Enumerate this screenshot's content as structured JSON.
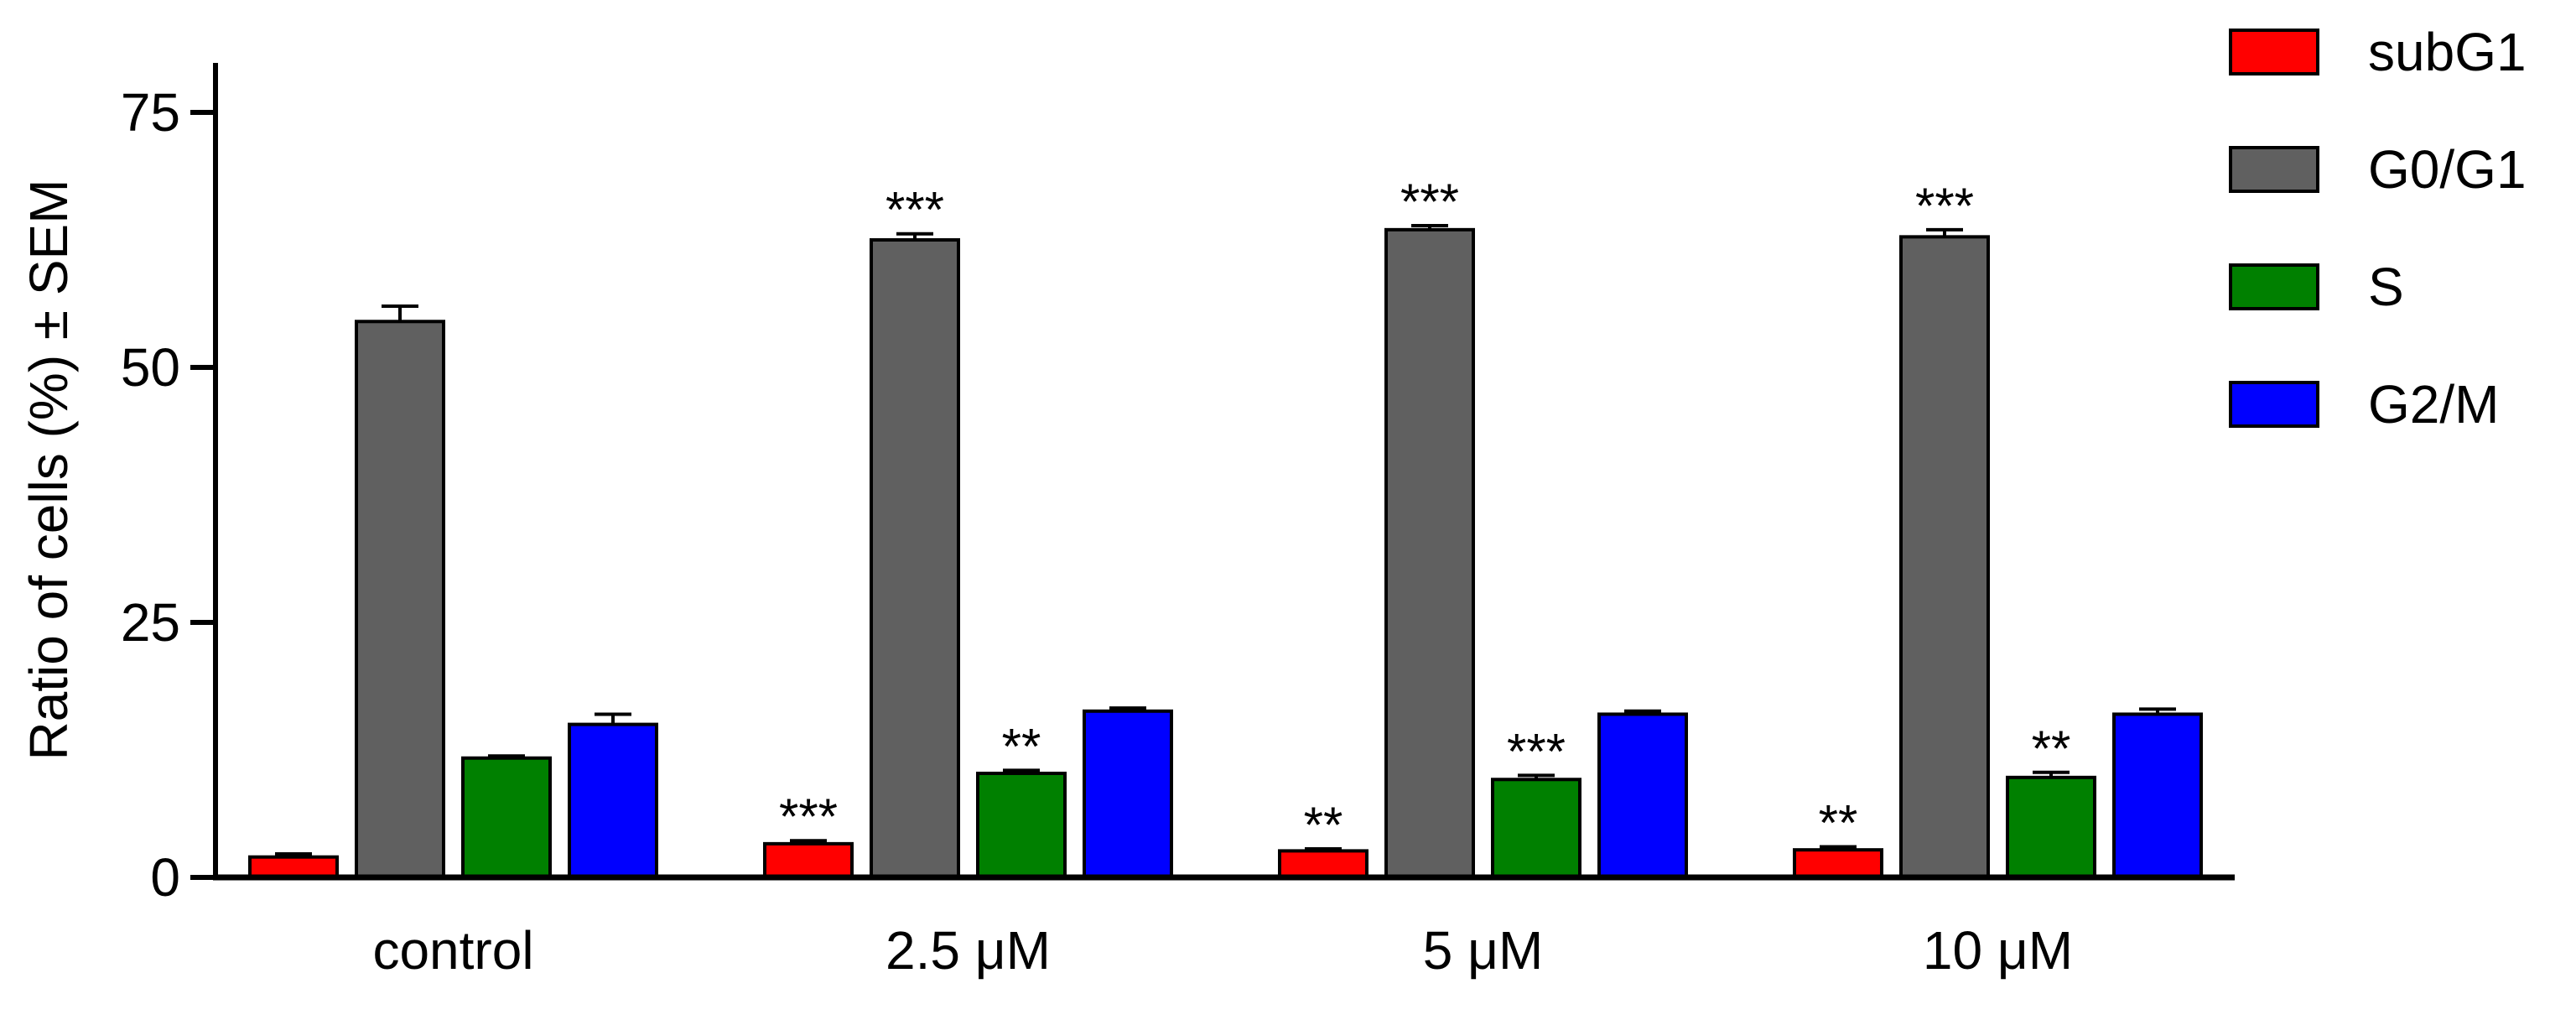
{
  "chart_data": {
    "type": "bar",
    "title": "",
    "xlabel": "",
    "ylabel": "Ratio of cells (%) ± SEM",
    "ylim": [
      0,
      80
    ],
    "yticks": [
      0,
      25,
      50,
      75
    ],
    "categories": [
      "control",
      "2.5 μM",
      "5 μM",
      "10 μM"
    ],
    "series": [
      {
        "name": "subG1",
        "color": "#ff0000",
        "values": [
          2.0,
          3.3,
          2.6,
          2.7
        ],
        "errors": [
          0.3,
          0.3,
          0.2,
          0.3
        ],
        "significance": [
          "",
          "***",
          "**",
          "**"
        ]
      },
      {
        "name": "G0/G1",
        "color": "#606060",
        "values": [
          54.5,
          62.5,
          63.5,
          62.8
        ],
        "errors": [
          1.5,
          0.6,
          0.4,
          0.7
        ],
        "significance": [
          "",
          "***",
          "***",
          "***"
        ]
      },
      {
        "name": "S",
        "color": "#008000",
        "values": [
          11.7,
          10.2,
          9.6,
          9.8
        ],
        "errors": [
          0.2,
          0.3,
          0.4,
          0.5
        ],
        "significance": [
          "",
          "**",
          "***",
          "**"
        ]
      },
      {
        "name": "G2/M",
        "color": "#0000ff",
        "values": [
          15.0,
          16.3,
          16.0,
          16.0
        ],
        "errors": [
          1.0,
          0.3,
          0.3,
          0.5
        ],
        "significance": [
          "",
          "",
          "",
          ""
        ]
      }
    ],
    "legend": "top-right",
    "grid": false
  }
}
